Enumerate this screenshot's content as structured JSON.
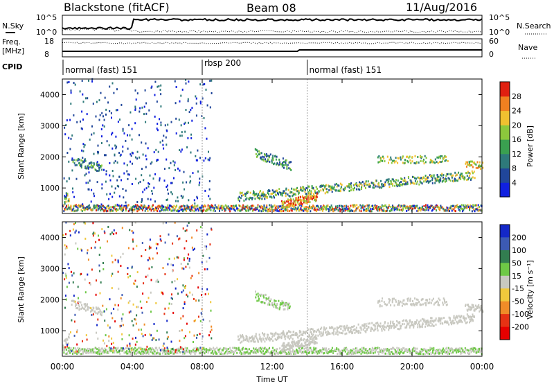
{
  "header": {
    "station": "Blackstone (fitACF)",
    "beam": "Beam 08",
    "date": "11/Aug/2016"
  },
  "summary_panels": {
    "nsky_label": "N.Sky",
    "nsearch_label": "N.Search",
    "count_ticks": [
      "10^5",
      "10^0"
    ],
    "freq_label_top": "Freq.",
    "freq_label_bottom": "[MHz]",
    "freq_ticks": [
      "18",
      "8"
    ],
    "nave_label": "Nave",
    "nave_ticks": [
      "60",
      "0"
    ],
    "cpid_label": "CPID"
  },
  "cpid_segments": [
    {
      "label": "normal (fast) 151",
      "start_hour": 0
    },
    {
      "label": "rbsp 200",
      "start_hour": 8
    },
    {
      "label": "normal (fast) 151",
      "start_hour": 14
    }
  ],
  "chart_data": [
    {
      "type": "heatmap",
      "name": "power",
      "ylabel": "Slant Range [km]",
      "xlim": [
        0,
        24
      ],
      "ylim": [
        180,
        4500
      ],
      "yticks": [
        "1000",
        "2000",
        "3000",
        "4000"
      ],
      "colorbar": {
        "label": "Power [dB]",
        "ticks": [
          "4",
          "8",
          "12",
          "16",
          "20",
          "24",
          "28"
        ],
        "colors": [
          "#1020e0",
          "#20469a",
          "#2e7a7a",
          "#3aa050",
          "#8cc83c",
          "#f0c030",
          "#f08020",
          "#e02010"
        ]
      }
    },
    {
      "type": "heatmap",
      "name": "velocity",
      "ylabel": "Slant Range [km]",
      "xlabel": "Time UT",
      "xlim": [
        0,
        24
      ],
      "ylim": [
        180,
        4500
      ],
      "yticks": [
        "1000",
        "2000",
        "3000",
        "4000"
      ],
      "xticks": [
        "00:00",
        "04:00",
        "08:00",
        "12:00",
        "16:00",
        "20:00",
        "00:00"
      ],
      "colorbar": {
        "label": "Velocity [m s⁻¹]",
        "ticks": [
          "200",
          "100",
          "50",
          "15",
          "-15",
          "-50",
          "-100",
          "-200"
        ],
        "colors": [
          "#1428c8",
          "#3c5ab4",
          "#327d50",
          "#6ec846",
          "#c8c8c0",
          "#f0c83c",
          "#f08c28",
          "#e63214",
          "#e60000"
        ]
      }
    }
  ]
}
